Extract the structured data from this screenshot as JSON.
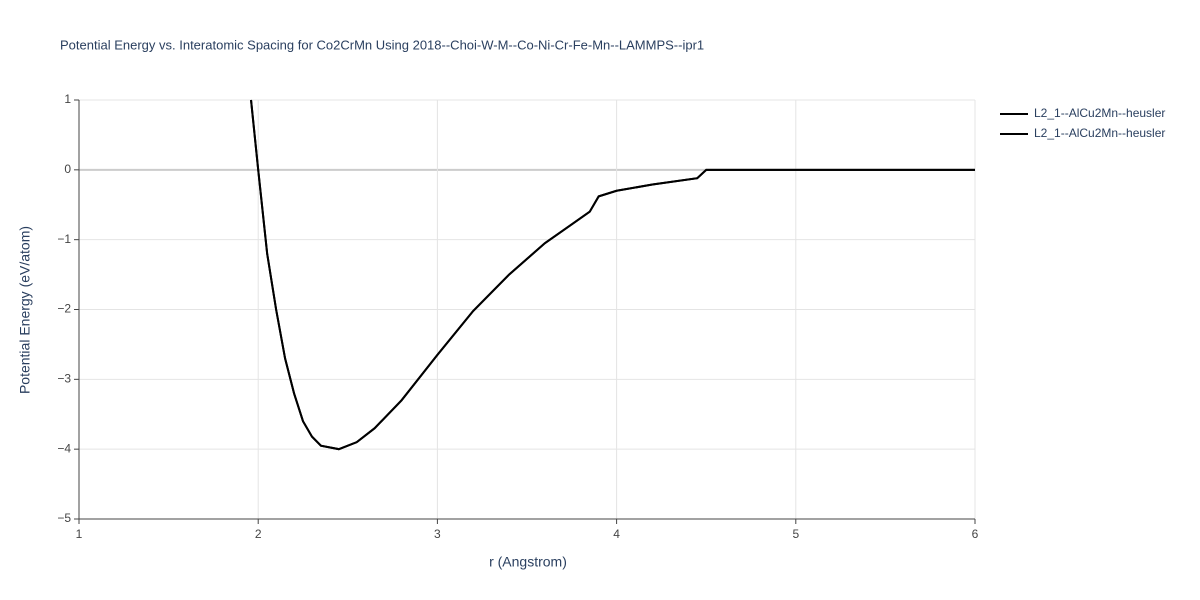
{
  "chart_data": {
    "type": "line",
    "title": "Potential Energy vs. Interatomic Spacing for Co2CrMn Using 2018--Choi-W-M--Co-Ni-Cr-Fe-Mn--LAMMPS--ipr1",
    "x_label": "r (Angstrom)",
    "y_label": "Potential Energy (eV/atom)",
    "xlim": [
      1,
      6
    ],
    "ylim": [
      -5,
      1
    ],
    "xticks": [
      1,
      2,
      3,
      4,
      5,
      6
    ],
    "yticks": [
      {
        "value": -5,
        "label": "−5"
      },
      {
        "value": -4,
        "label": "−4"
      },
      {
        "value": -3,
        "label": "−3"
      },
      {
        "value": -2,
        "label": "−2"
      },
      {
        "value": -1,
        "label": "−1"
      },
      0,
      1
    ],
    "grid": true,
    "legend": "top-right",
    "series": [
      {
        "name": "L2_1--AlCu2Mn--heusler",
        "color": "#000000",
        "x": [
          1.96,
          2.0,
          2.05,
          2.1,
          2.15,
          2.2,
          2.25,
          2.3,
          2.35,
          2.45,
          2.55,
          2.65,
          2.8,
          3.0,
          3.2,
          3.4,
          3.6,
          3.75,
          3.85,
          3.9,
          4.0,
          4.2,
          4.45,
          4.5,
          6.0
        ],
        "values": [
          1,
          0,
          -1.2,
          -2.0,
          -2.7,
          -3.2,
          -3.6,
          -3.82,
          -3.95,
          -4.0,
          -3.9,
          -3.7,
          -3.3,
          -2.65,
          -2.02,
          -1.5,
          -1.05,
          -0.78,
          -0.6,
          -0.38,
          -0.3,
          -0.21,
          -0.12,
          0,
          0
        ]
      },
      {
        "name": "L2_1--AlCu2Mn--heusler",
        "color": "#000000",
        "x": [
          1.96,
          2.0,
          2.05,
          2.1,
          2.15,
          2.2,
          2.25,
          2.3,
          2.35,
          2.45,
          2.55,
          2.65,
          2.8,
          3.0,
          3.2,
          3.4,
          3.6,
          3.75,
          3.85,
          3.9,
          4.0,
          4.2,
          4.45,
          4.5,
          6.0
        ],
        "values": [
          1,
          0,
          -1.2,
          -2.0,
          -2.7,
          -3.2,
          -3.6,
          -3.82,
          -3.95,
          -4.0,
          -3.9,
          -3.7,
          -3.3,
          -2.65,
          -2.02,
          -1.5,
          -1.05,
          -0.78,
          -0.6,
          -0.38,
          -0.3,
          -0.21,
          -0.12,
          0,
          0
        ]
      }
    ]
  }
}
